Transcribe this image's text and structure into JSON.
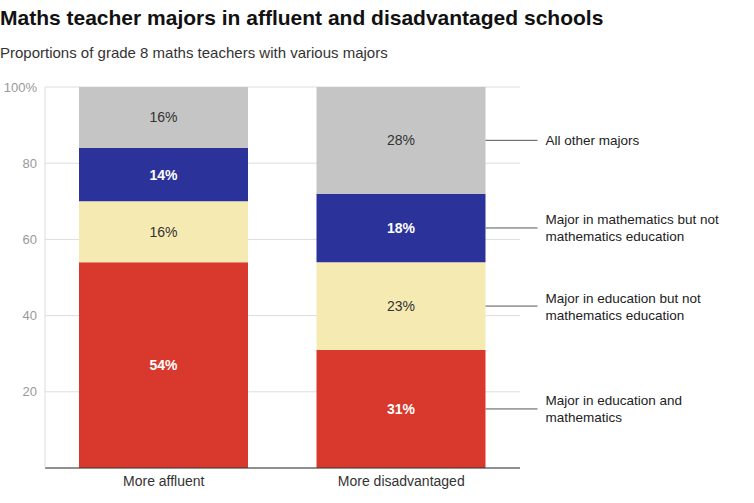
{
  "chart_data": {
    "type": "bar",
    "title": "Maths teacher majors in affluent and disadvantaged schools",
    "subtitle": "Proportions of grade 8 maths teachers with various majors",
    "categories": [
      "More affluent",
      "More disadvantaged"
    ],
    "series": [
      {
        "name": "Major in education and mathematics",
        "color": "#d9382c",
        "values": [
          54,
          31
        ],
        "value_labels": [
          "54%",
          "31%"
        ]
      },
      {
        "name": "Major in education but not mathematics education",
        "color": "#f6eab3",
        "values": [
          16,
          23
        ],
        "value_labels": [
          "16%",
          "23%"
        ]
      },
      {
        "name": "Major in mathematics but not mathematics education",
        "color": "#2b339b",
        "values": [
          14,
          18
        ],
        "value_labels": [
          "14%",
          "18%"
        ]
      },
      {
        "name": "All other majors",
        "color": "#c5c5c5",
        "values": [
          16,
          28
        ],
        "value_labels": [
          "16%",
          "28%"
        ]
      }
    ],
    "ylim": [
      0,
      100
    ],
    "yticks": [
      20,
      40,
      60,
      80,
      {
        "value": 100,
        "label": "100%"
      }
    ],
    "grid": true,
    "stacked": true,
    "data_labels": true
  }
}
